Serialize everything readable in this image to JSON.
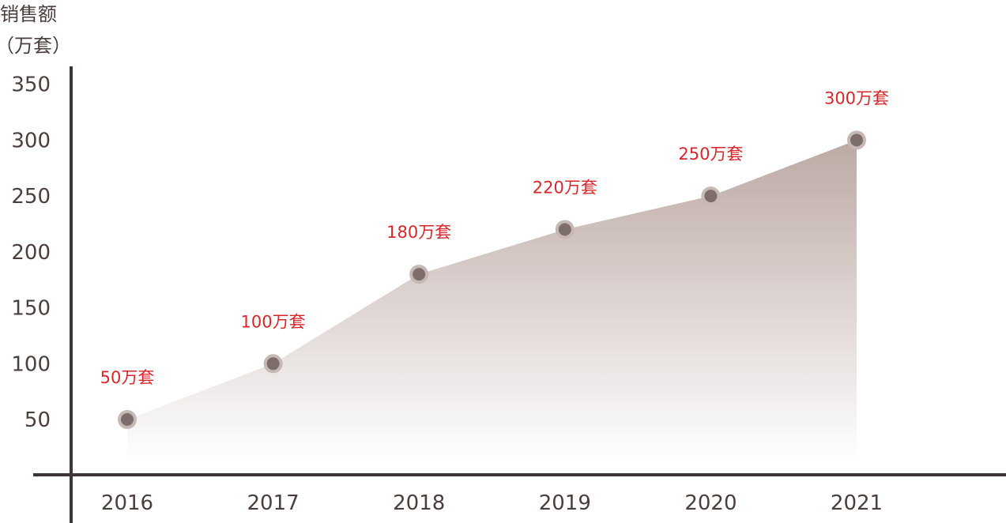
{
  "chart_data": {
    "type": "area",
    "ylabel_line1": "销售额",
    "ylabel_line2": "（万套）",
    "xlabel": "",
    "categories": [
      "2016",
      "2017",
      "2018",
      "2019",
      "2020",
      "2021"
    ],
    "values": [
      50,
      100,
      180,
      220,
      250,
      300
    ],
    "data_labels": [
      "50万套",
      "100万套",
      "180万套",
      "220万套",
      "250万套",
      "300万套"
    ],
    "yticks": [
      50,
      100,
      150,
      200,
      250,
      300,
      350
    ],
    "ylim": [
      0,
      350
    ],
    "grid": false,
    "legend": "none",
    "colors": {
      "axis": "#3d3536",
      "fill_top": "#bca9a4",
      "fill_bottom": "#ffffff",
      "marker": "#7d6e6b",
      "marker_ring": "#c5b8b5",
      "label": "#d9262b",
      "tick_text": "#4a3f3d"
    }
  }
}
